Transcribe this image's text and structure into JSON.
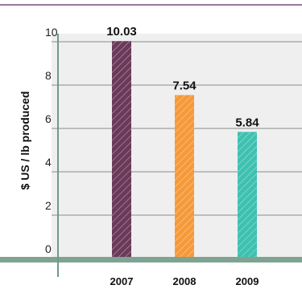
{
  "chart_data": {
    "type": "bar",
    "title": "",
    "xlabel": "",
    "ylabel": "$ US / lb produced",
    "categories": [
      "2007",
      "2008",
      "2009"
    ],
    "values": [
      10.03,
      7.54,
      5.84
    ],
    "value_labels": [
      "10.03",
      "7.54",
      "5.84"
    ],
    "ylim": [
      0,
      10
    ],
    "yticks": [
      0,
      2,
      4,
      6,
      8,
      10
    ],
    "ytick_labels": [
      "0",
      "2",
      "4",
      "6",
      "8",
      "10"
    ],
    "grid": true,
    "legend": "none",
    "colors": {
      "bars": [
        "#6b3a5a",
        "#f59a3a",
        "#3ec1b1"
      ],
      "plot_background": "#efefef",
      "baseline": "#7fa392",
      "axis": "#6f9a86",
      "grid": "#6a6a6a",
      "top_rule": "#7a4a7a",
      "hatch": "#ffffff"
    }
  }
}
